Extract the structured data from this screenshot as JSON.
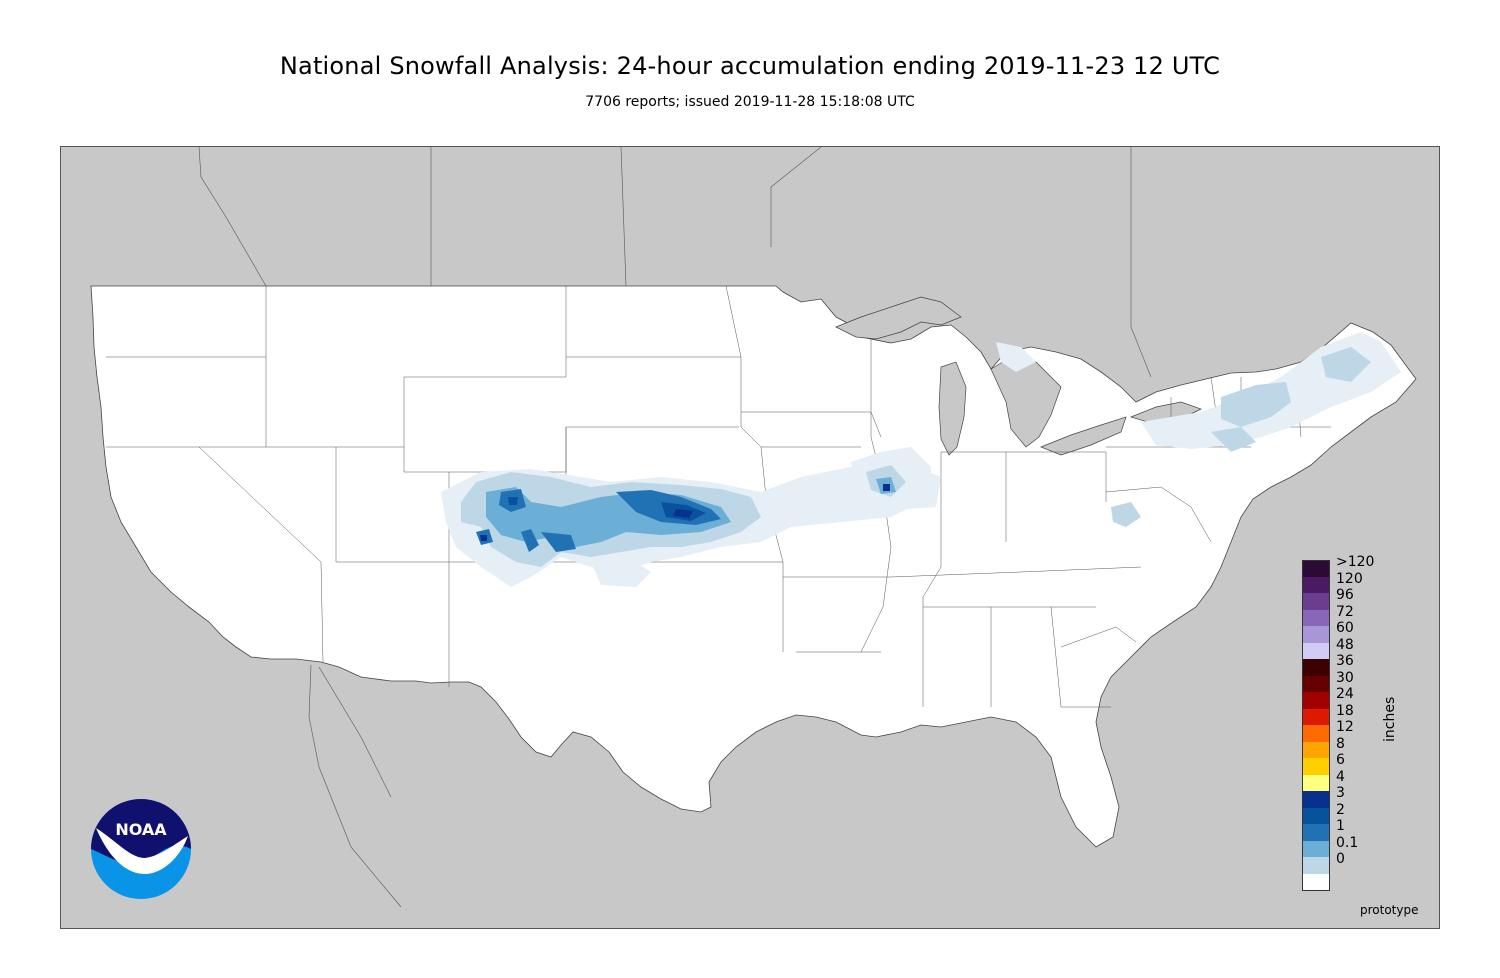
{
  "title": "National Snowfall Analysis: 24-hour accumulation ending 2019-11-23 12 UTC",
  "subtitle": "7706 reports; issued 2019-11-28 15:18:08 UTC",
  "map": {
    "background_color": "#c8c8c8",
    "land_color": "#ffffff",
    "border_color": "#555555"
  },
  "legend": {
    "units": "inches",
    "entries": [
      {
        "label": ">120",
        "color": "#2b0a36"
      },
      {
        "label": "120",
        "color": "#4a1a63"
      },
      {
        "label": "96",
        "color": "#6a3d91"
      },
      {
        "label": "72",
        "color": "#8866b8"
      },
      {
        "label": "60",
        "color": "#a896d8"
      },
      {
        "label": "48",
        "color": "#d0ccf5"
      },
      {
        "label": "36",
        "color": "#3d0000"
      },
      {
        "label": "30",
        "color": "#660000"
      },
      {
        "label": "24",
        "color": "#a30000"
      },
      {
        "label": "18",
        "color": "#dd1a00"
      },
      {
        "label": "12",
        "color": "#ff6a00"
      },
      {
        "label": "8",
        "color": "#ffa500"
      },
      {
        "label": "6",
        "color": "#ffd000"
      },
      {
        "label": "4",
        "color": "#ffff80"
      },
      {
        "label": "3",
        "color": "#08308f"
      },
      {
        "label": "2",
        "color": "#08519c"
      },
      {
        "label": "1",
        "color": "#2171b5"
      },
      {
        "label": "0.1",
        "color": "#6baed6"
      },
      {
        "label": "0",
        "color": "#bdd7e7"
      }
    ],
    "zero_color": "#ffffff",
    "trace_color": "#e6eef6"
  },
  "logo": {
    "text": "NOAA",
    "name": "noaa-logo"
  },
  "footer": {
    "status": "prototype"
  }
}
